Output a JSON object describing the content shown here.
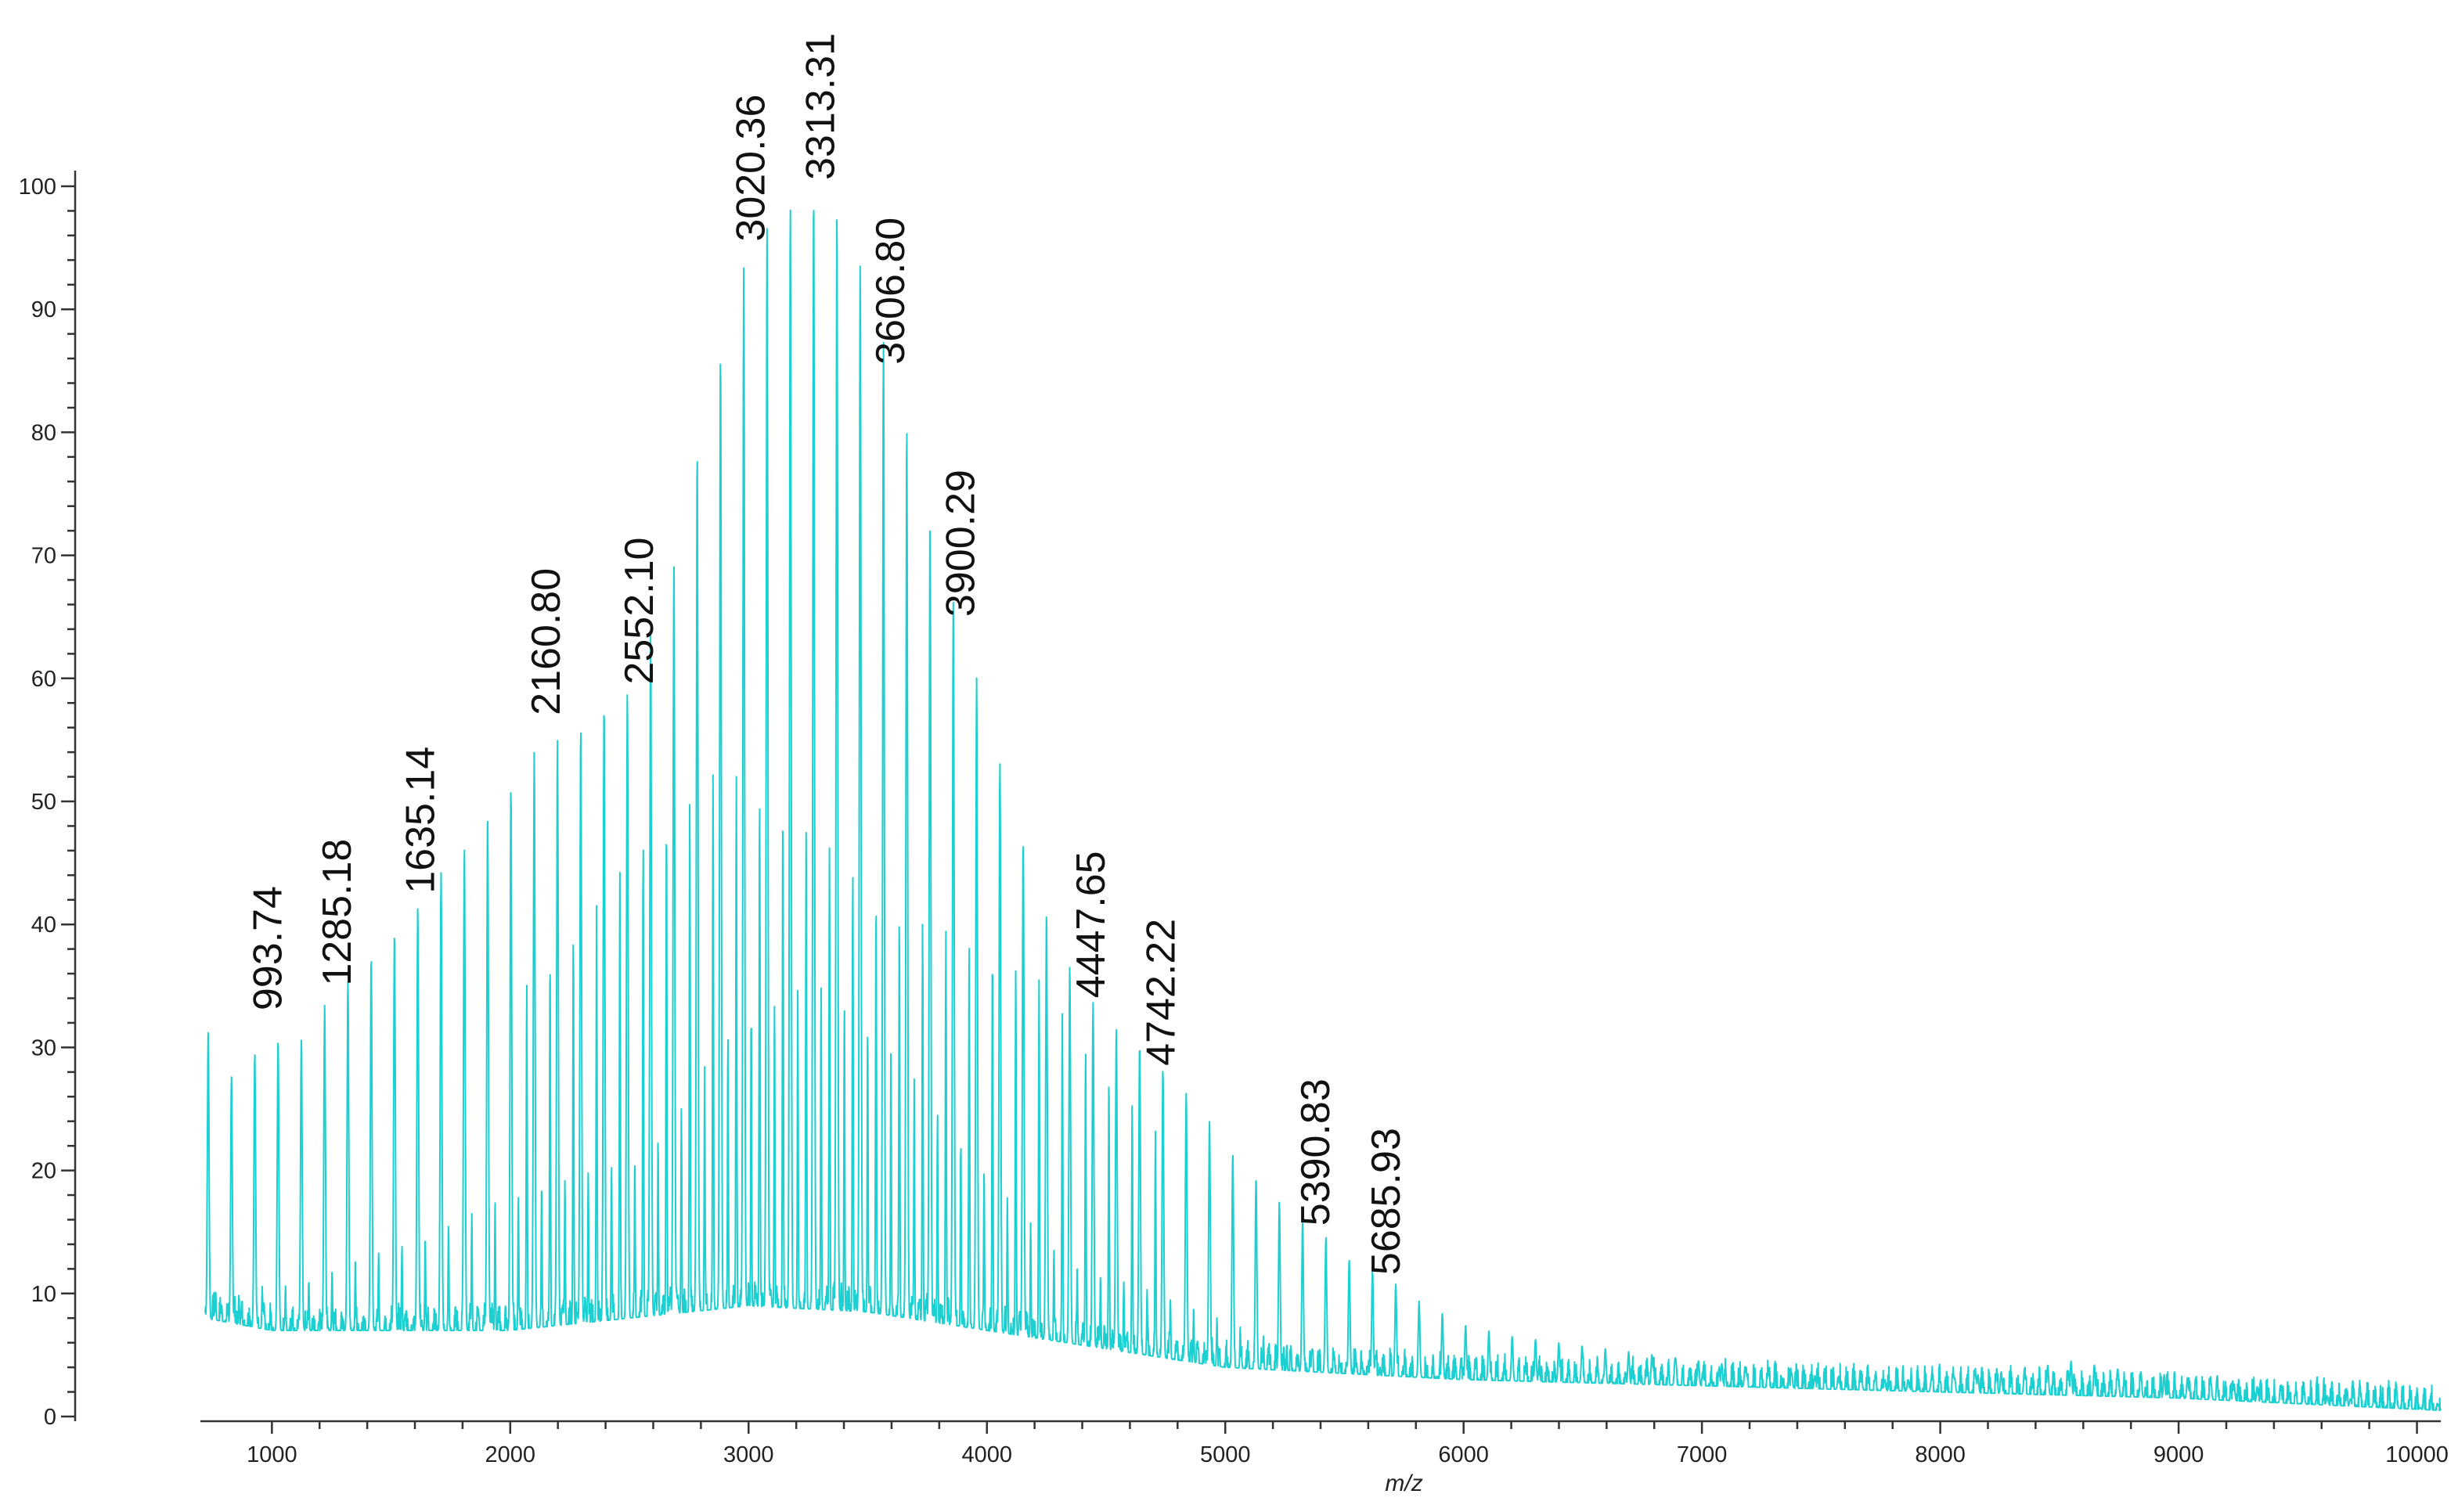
{
  "chart_data": {
    "type": "line",
    "title": "",
    "xlabel": "m/z",
    "ylabel": "",
    "xlim": [
      700,
      10100
    ],
    "ylim": [
      0,
      100
    ],
    "x_ticks": [
      1000,
      2000,
      3000,
      4000,
      5000,
      6000,
      7000,
      8000,
      9000,
      10000
    ],
    "y_ticks": [
      0,
      10,
      20,
      30,
      40,
      50,
      60,
      70,
      80,
      90,
      100
    ],
    "grid": false,
    "series_color": "#1ccfd0",
    "labeled_peaks": [
      {
        "x": 993.74,
        "y": 32.5,
        "label": "993.74"
      },
      {
        "x": 1285.18,
        "y": 34.5,
        "label": "1285.18"
      },
      {
        "x": 1635.14,
        "y": 42.0,
        "label": "1635.14"
      },
      {
        "x": 2160.8,
        "y": 56.5,
        "label": "2160.80"
      },
      {
        "x": 2552.1,
        "y": 59.0,
        "label": "2552.10"
      },
      {
        "x": 3020.36,
        "y": 95.0,
        "label": "3020.36"
      },
      {
        "x": 3313.31,
        "y": 100.0,
        "label": "3313.31"
      },
      {
        "x": 3606.8,
        "y": 85.0,
        "label": "3606.80"
      },
      {
        "x": 3900.29,
        "y": 64.5,
        "label": "3900.29"
      },
      {
        "x": 4447.65,
        "y": 33.5,
        "label": "4447.65"
      },
      {
        "x": 4742.22,
        "y": 28.0,
        "label": "4742.22"
      },
      {
        "x": 5390.83,
        "y": 15.0,
        "label": "5390.83"
      },
      {
        "x": 5685.93,
        "y": 11.0,
        "label": "5685.93"
      }
    ],
    "series": [
      {
        "peak_spacing": 97.7,
        "envelope": [
          [
            720,
            32
          ],
          [
            800,
            27
          ],
          [
            900,
            29
          ],
          [
            1000,
            31
          ],
          [
            1100,
            30
          ],
          [
            1200,
            33
          ],
          [
            1300,
            35
          ],
          [
            1400,
            37
          ],
          [
            1500,
            39
          ],
          [
            1600,
            41
          ],
          [
            1700,
            44
          ],
          [
            1800,
            46
          ],
          [
            1900,
            49
          ],
          [
            2000,
            51
          ],
          [
            2100,
            54
          ],
          [
            2200,
            55
          ],
          [
            2300,
            56
          ],
          [
            2400,
            58
          ],
          [
            2500,
            59
          ],
          [
            2600,
            64
          ],
          [
            2700,
            70
          ],
          [
            2800,
            80
          ],
          [
            2900,
            88
          ],
          [
            3000,
            95
          ],
          [
            3100,
            97
          ],
          [
            3200,
            99
          ],
          [
            3313,
            100
          ],
          [
            3400,
            97
          ],
          [
            3500,
            92
          ],
          [
            3600,
            85
          ],
          [
            3700,
            78
          ],
          [
            3800,
            70
          ],
          [
            3900,
            64
          ],
          [
            4000,
            57
          ],
          [
            4100,
            50
          ],
          [
            4200,
            44
          ],
          [
            4300,
            38
          ],
          [
            4400,
            35
          ],
          [
            4500,
            32
          ],
          [
            4600,
            31
          ],
          [
            4700,
            29
          ],
          [
            4800,
            27
          ],
          [
            4900,
            25
          ],
          [
            5000,
            22
          ],
          [
            5100,
            20
          ],
          [
            5200,
            18
          ],
          [
            5300,
            16
          ],
          [
            5400,
            15
          ],
          [
            5500,
            13
          ],
          [
            5600,
            12
          ],
          [
            5700,
            11
          ],
          [
            5800,
            9.5
          ],
          [
            5900,
            8.5
          ],
          [
            6000,
            7.5
          ],
          [
            6200,
            6.5
          ],
          [
            6400,
            6
          ],
          [
            6600,
            5.5
          ],
          [
            6800,
            5
          ],
          [
            7000,
            4.5
          ],
          [
            7200,
            4
          ],
          [
            7400,
            3.5
          ],
          [
            7600,
            3
          ],
          [
            7800,
            3
          ],
          [
            8000,
            3
          ],
          [
            8200,
            3.5
          ],
          [
            8400,
            4
          ],
          [
            8550,
            4.5
          ],
          [
            8700,
            4
          ],
          [
            8900,
            3.5
          ],
          [
            9100,
            3
          ],
          [
            9300,
            2.5
          ],
          [
            9500,
            2
          ],
          [
            9700,
            1.5
          ],
          [
            9900,
            1
          ],
          [
            10100,
            0.5
          ]
        ],
        "baseline": [
          [
            720,
            8
          ],
          [
            1000,
            7
          ],
          [
            1500,
            7
          ],
          [
            2000,
            7
          ],
          [
            2500,
            8
          ],
          [
            3000,
            9
          ],
          [
            3500,
            8.5
          ],
          [
            4000,
            7
          ],
          [
            4500,
            5.5
          ],
          [
            5000,
            4
          ],
          [
            5500,
            3.5
          ],
          [
            6000,
            3
          ],
          [
            7000,
            2.5
          ],
          [
            8000,
            2
          ],
          [
            9000,
            1.5
          ],
          [
            10100,
            0.5
          ]
        ],
        "inner_ridge": [
          [
            2000,
            34
          ],
          [
            2300,
            40
          ],
          [
            2600,
            48
          ],
          [
            2900,
            53
          ],
          [
            3100,
            50
          ],
          [
            3300,
            47
          ],
          [
            3600,
            41
          ],
          [
            3900,
            39
          ],
          [
            4200,
            36
          ],
          [
            4500,
            28
          ],
          [
            4800,
            21
          ]
        ]
      }
    ]
  }
}
